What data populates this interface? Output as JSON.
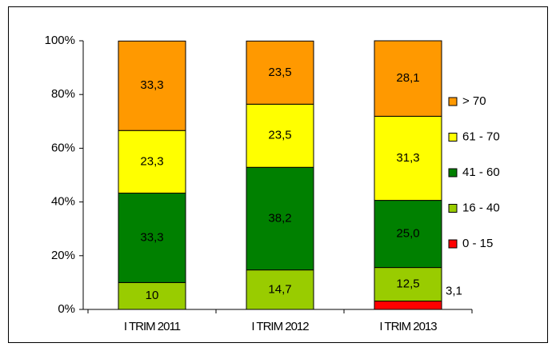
{
  "chart_data": {
    "type": "stacked_bar",
    "categories": [
      "I TRIM 2011",
      "I TRIM 2012",
      "I TRIM 2013"
    ],
    "series": [
      {
        "name": "0 - 15",
        "color": "#ff0000",
        "values": [
          null,
          null,
          3.1
        ],
        "value_labels": [
          null,
          null,
          "3,1"
        ]
      },
      {
        "name": "16 - 40",
        "color": "#99cc00",
        "values": [
          10,
          14.7,
          12.5
        ],
        "value_labels": [
          "10",
          "14,7",
          "12,5"
        ]
      },
      {
        "name": "41 - 60",
        "color": "#008000",
        "values": [
          33.3,
          38.2,
          25.0
        ],
        "value_labels": [
          "33,3",
          "38,2",
          "25,0"
        ]
      },
      {
        "name": "61 - 70",
        "color": "#ffff00",
        "values": [
          23.3,
          23.5,
          31.3
        ],
        "value_labels": [
          "23,3",
          "23,5",
          "31,3"
        ]
      },
      {
        "name": "> 70",
        "color": "#ff9900",
        "values": [
          33.3,
          23.5,
          28.1
        ],
        "value_labels": [
          "33,3",
          "23,5",
          "28,1"
        ]
      }
    ],
    "ylim": [
      0,
      100
    ],
    "yticks": [
      {
        "value": 0,
        "label": "0%"
      },
      {
        "value": 20,
        "label": "20%"
      },
      {
        "value": 40,
        "label": "40%"
      },
      {
        "value": 60,
        "label": "60%"
      },
      {
        "value": 80,
        "label": "80%"
      },
      {
        "value": 100,
        "label": "100%"
      }
    ],
    "legend": "right"
  }
}
